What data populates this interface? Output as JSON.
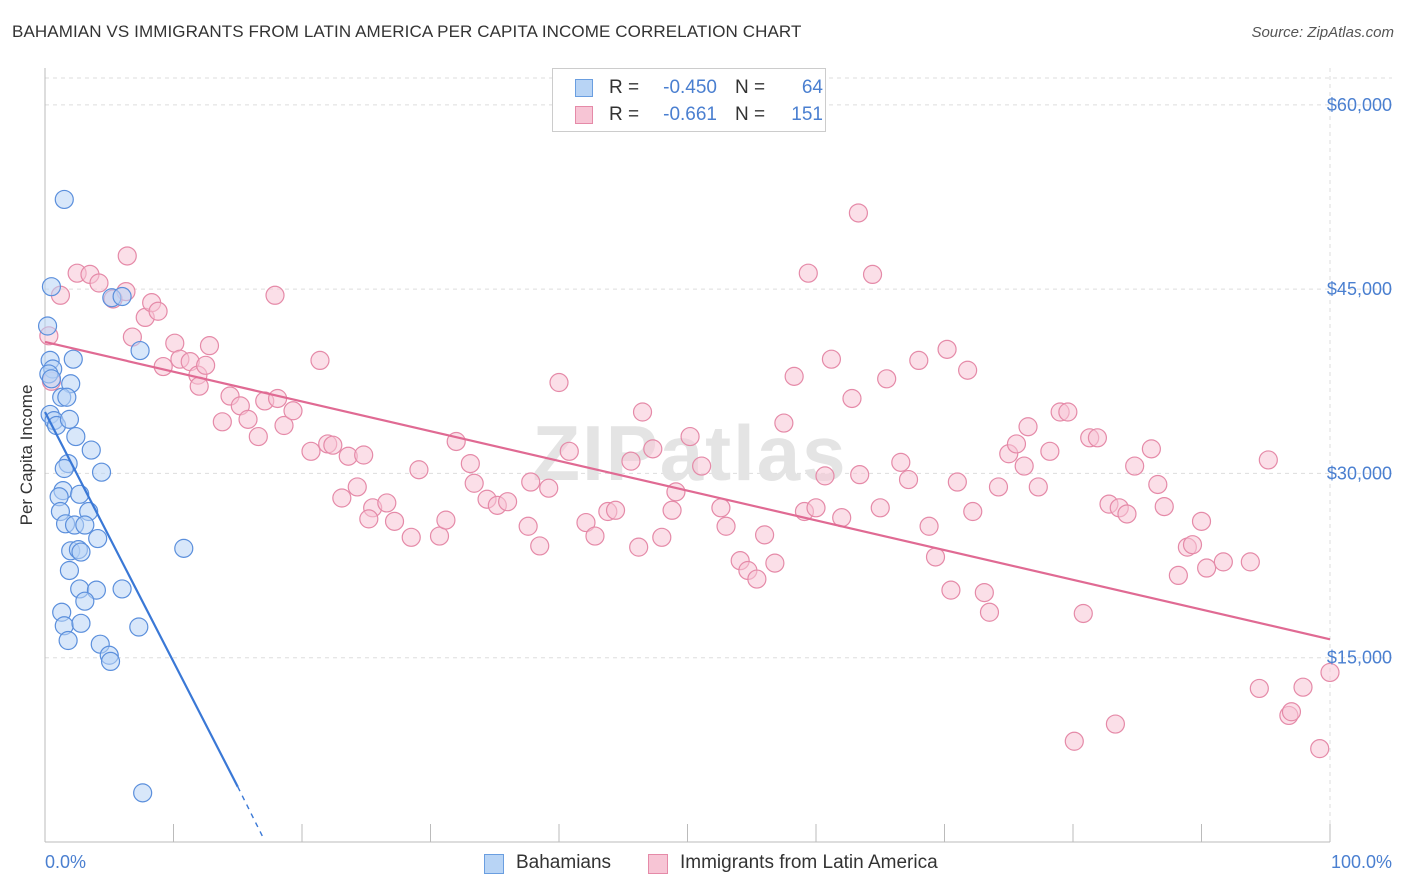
{
  "title": "BAHAMIAN VS IMMIGRANTS FROM LATIN AMERICA PER CAPITA INCOME CORRELATION CHART",
  "source": "Source: ZipAtlas.com",
  "watermark": "ZIPatlas",
  "legend": {
    "r_label": "R =",
    "n_label": "N =",
    "rows": [
      {
        "r": "-0.450",
        "n": "64",
        "fill": "#b8d4f5",
        "stroke": "#6a9ee0"
      },
      {
        "r": "-0.661",
        "n": "151",
        "fill": "#f7c5d5",
        "stroke": "#e58aa8"
      }
    ]
  },
  "colors": {
    "bahamians_fill": "#b8d4f5",
    "bahamians_stroke": "#5b8fdc",
    "bahamians_line": "#3a78d6",
    "latam_fill": "#f7c5d5",
    "latam_stroke": "#e58aa8",
    "latam_line": "#e06a93",
    "grid": "#dddddd",
    "tick_text": "#4a7fd0"
  },
  "chart_data": {
    "type": "scatter",
    "ylabel": "Per Capita Income",
    "x_range": [
      0,
      100
    ],
    "y_range": [
      0,
      63000
    ],
    "x_tick_labels": [
      {
        "value": 0,
        "label": "0.0%"
      },
      {
        "value": 100,
        "label": "100.0%"
      }
    ],
    "y_ticks": [
      {
        "value": 15000,
        "label": "$15,000"
      },
      {
        "value": 30000,
        "label": "$30,000"
      },
      {
        "value": 45000,
        "label": "$45,000"
      },
      {
        "value": 60000,
        "label": "$60,000"
      }
    ],
    "grid": true,
    "series": [
      {
        "name": "Bahamians",
        "r": -0.45,
        "n": 64,
        "trend": {
          "x0": 0,
          "y0": 35000,
          "x1": 15,
          "y1": 4500,
          "dash_x1": 17,
          "dash_y1": 300
        },
        "points": [
          [
            1.5,
            52300
          ],
          [
            0.5,
            45200
          ],
          [
            5.2,
            44300
          ],
          [
            6.0,
            44400
          ],
          [
            0.2,
            42000
          ],
          [
            7.4,
            40000
          ],
          [
            0.4,
            39200
          ],
          [
            0.6,
            38500
          ],
          [
            0.3,
            38100
          ],
          [
            0.5,
            37700
          ],
          [
            2.2,
            39300
          ],
          [
            2.0,
            37300
          ],
          [
            1.3,
            36200
          ],
          [
            1.7,
            36200
          ],
          [
            0.4,
            34800
          ],
          [
            0.7,
            34300
          ],
          [
            0.9,
            33900
          ],
          [
            1.9,
            34400
          ],
          [
            2.4,
            33000
          ],
          [
            3.6,
            31900
          ],
          [
            1.8,
            30800
          ],
          [
            1.5,
            30400
          ],
          [
            4.4,
            30100
          ],
          [
            1.4,
            28600
          ],
          [
            1.1,
            28100
          ],
          [
            2.7,
            28300
          ],
          [
            1.2,
            26900
          ],
          [
            3.4,
            26900
          ],
          [
            1.6,
            25900
          ],
          [
            2.3,
            25800
          ],
          [
            3.1,
            25800
          ],
          [
            4.1,
            24700
          ],
          [
            2.0,
            23700
          ],
          [
            2.6,
            23800
          ],
          [
            2.8,
            23600
          ],
          [
            10.8,
            23900
          ],
          [
            1.9,
            22100
          ],
          [
            2.7,
            20600
          ],
          [
            4.0,
            20500
          ],
          [
            6.0,
            20600
          ],
          [
            3.1,
            19600
          ],
          [
            1.3,
            18700
          ],
          [
            1.5,
            17600
          ],
          [
            2.8,
            17800
          ],
          [
            7.3,
            17500
          ],
          [
            1.8,
            16400
          ],
          [
            4.3,
            16100
          ],
          [
            5.0,
            15200
          ],
          [
            5.1,
            14700
          ],
          [
            7.6,
            4000
          ]
        ]
      },
      {
        "name": "Immigrants from Latin America",
        "r": -0.661,
        "n": 151,
        "trend": {
          "x0": 0,
          "y0": 40700,
          "x1": 100,
          "y1": 16500
        },
        "points": [
          [
            0.3,
            41200
          ],
          [
            0.5,
            37500
          ],
          [
            1.2,
            44500
          ],
          [
            2.5,
            46300
          ],
          [
            3.5,
            46200
          ],
          [
            4.2,
            45500
          ],
          [
            5.3,
            44200
          ],
          [
            6.3,
            44800
          ],
          [
            6.4,
            47700
          ],
          [
            6.8,
            41100
          ],
          [
            7.8,
            42700
          ],
          [
            8.3,
            43900
          ],
          [
            8.8,
            43200
          ],
          [
            9.2,
            38700
          ],
          [
            10.1,
            40600
          ],
          [
            10.5,
            39300
          ],
          [
            11.3,
            39100
          ],
          [
            11.9,
            38000
          ],
          [
            12.8,
            40400
          ],
          [
            12.5,
            38800
          ],
          [
            12.0,
            37100
          ],
          [
            14.4,
            36300
          ],
          [
            15.2,
            35500
          ],
          [
            15.8,
            34400
          ],
          [
            13.8,
            34200
          ],
          [
            17.1,
            35900
          ],
          [
            18.1,
            36100
          ],
          [
            16.6,
            33000
          ],
          [
            18.6,
            33900
          ],
          [
            19.3,
            35100
          ],
          [
            17.9,
            44500
          ],
          [
            21.4,
            39200
          ],
          [
            20.7,
            31800
          ],
          [
            22.0,
            32400
          ],
          [
            22.4,
            32300
          ],
          [
            23.6,
            31400
          ],
          [
            23.1,
            28000
          ],
          [
            24.8,
            31500
          ],
          [
            24.3,
            28900
          ],
          [
            25.5,
            27200
          ],
          [
            26.6,
            27600
          ],
          [
            25.2,
            26300
          ],
          [
            27.2,
            26100
          ],
          [
            28.5,
            24800
          ],
          [
            29.1,
            30300
          ],
          [
            30.7,
            24900
          ],
          [
            31.2,
            26200
          ],
          [
            32.0,
            32600
          ],
          [
            33.1,
            30800
          ],
          [
            33.4,
            29200
          ],
          [
            34.4,
            27900
          ],
          [
            35.2,
            27400
          ],
          [
            36.0,
            27700
          ],
          [
            37.8,
            29300
          ],
          [
            37.6,
            25700
          ],
          [
            38.5,
            24100
          ],
          [
            39.2,
            28800
          ],
          [
            40.0,
            37400
          ],
          [
            40.8,
            31800
          ],
          [
            42.1,
            26000
          ],
          [
            42.8,
            24900
          ],
          [
            43.8,
            26900
          ],
          [
            44.4,
            27000
          ],
          [
            45.6,
            31000
          ],
          [
            46.2,
            24000
          ],
          [
            46.5,
            35000
          ],
          [
            47.3,
            32000
          ],
          [
            48.0,
            24800
          ],
          [
            48.8,
            27000
          ],
          [
            49.1,
            28500
          ],
          [
            50.2,
            33000
          ],
          [
            51.1,
            30600
          ],
          [
            52.6,
            27200
          ],
          [
            53.0,
            25700
          ],
          [
            54.1,
            22900
          ],
          [
            54.7,
            22100
          ],
          [
            55.4,
            21400
          ],
          [
            56.0,
            25000
          ],
          [
            56.8,
            22700
          ],
          [
            57.5,
            34100
          ],
          [
            58.3,
            37900
          ],
          [
            59.1,
            26900
          ],
          [
            60.0,
            27200
          ],
          [
            60.7,
            29800
          ],
          [
            61.2,
            39300
          ],
          [
            62.0,
            26400
          ],
          [
            62.8,
            36100
          ],
          [
            63.4,
            29900
          ],
          [
            64.4,
            46200
          ],
          [
            65.0,
            27200
          ],
          [
            65.5,
            37700
          ],
          [
            66.6,
            30900
          ],
          [
            67.2,
            29500
          ],
          [
            68.0,
            39200
          ],
          [
            68.8,
            25700
          ],
          [
            69.3,
            23200
          ],
          [
            70.2,
            40100
          ],
          [
            70.5,
            20500
          ],
          [
            71.0,
            29300
          ],
          [
            71.8,
            38400
          ],
          [
            72.2,
            26900
          ],
          [
            73.1,
            20300
          ],
          [
            73.5,
            18700
          ],
          [
            74.2,
            28900
          ],
          [
            75.0,
            31600
          ],
          [
            75.6,
            32400
          ],
          [
            76.2,
            30600
          ],
          [
            76.5,
            33800
          ],
          [
            77.3,
            28900
          ],
          [
            78.2,
            31800
          ],
          [
            79.0,
            35000
          ],
          [
            79.6,
            35000
          ],
          [
            80.8,
            18600
          ],
          [
            81.3,
            32900
          ],
          [
            81.9,
            32900
          ],
          [
            82.8,
            27500
          ],
          [
            83.6,
            27200
          ],
          [
            84.2,
            26700
          ],
          [
            84.8,
            30600
          ],
          [
            86.1,
            32000
          ],
          [
            86.6,
            29100
          ],
          [
            87.1,
            27300
          ],
          [
            88.2,
            21700
          ],
          [
            88.9,
            24000
          ],
          [
            89.3,
            24200
          ],
          [
            90.0,
            26100
          ],
          [
            90.4,
            22300
          ],
          [
            91.7,
            22800
          ],
          [
            93.8,
            22800
          ],
          [
            95.2,
            31100
          ],
          [
            63.3,
            51200
          ],
          [
            59.4,
            46300
          ],
          [
            80.1,
            8200
          ],
          [
            83.3,
            9600
          ],
          [
            96.8,
            10300
          ],
          [
            97.9,
            12600
          ],
          [
            99.2,
            7600
          ],
          [
            97.0,
            10600
          ],
          [
            100.0,
            13800
          ],
          [
            94.5,
            12500
          ]
        ]
      }
    ]
  }
}
